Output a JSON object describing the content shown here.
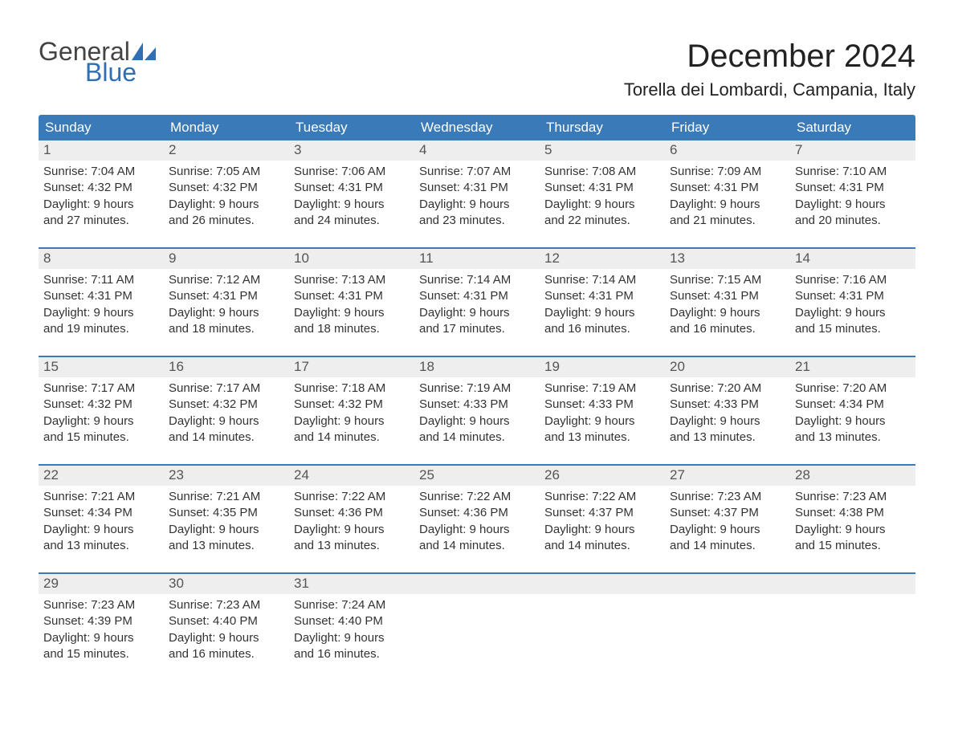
{
  "logo": {
    "word1": "General",
    "word2": "Blue"
  },
  "title": "December 2024",
  "location": "Torella dei Lombardi, Campania, Italy",
  "colors": {
    "header_bg": "#3a7ab8",
    "header_text": "#ffffff",
    "daynum_bg": "#eeeeee",
    "daynum_text": "#555555",
    "body_text": "#333333",
    "row_border": "#3a7ab8",
    "logo_gray": "#444444",
    "logo_blue": "#2f6fb3",
    "page_bg": "#ffffff"
  },
  "typography": {
    "title_fontsize": 40,
    "location_fontsize": 22,
    "dow_fontsize": 17,
    "daynum_fontsize": 17,
    "body_fontsize": 15,
    "logo_fontsize": 32
  },
  "daysOfWeek": [
    "Sunday",
    "Monday",
    "Tuesday",
    "Wednesday",
    "Thursday",
    "Friday",
    "Saturday"
  ],
  "weeks": [
    [
      {
        "n": "1",
        "sunrise": "Sunrise: 7:04 AM",
        "sunset": "Sunset: 4:32 PM",
        "d1": "Daylight: 9 hours",
        "d2": "and 27 minutes."
      },
      {
        "n": "2",
        "sunrise": "Sunrise: 7:05 AM",
        "sunset": "Sunset: 4:32 PM",
        "d1": "Daylight: 9 hours",
        "d2": "and 26 minutes."
      },
      {
        "n": "3",
        "sunrise": "Sunrise: 7:06 AM",
        "sunset": "Sunset: 4:31 PM",
        "d1": "Daylight: 9 hours",
        "d2": "and 24 minutes."
      },
      {
        "n": "4",
        "sunrise": "Sunrise: 7:07 AM",
        "sunset": "Sunset: 4:31 PM",
        "d1": "Daylight: 9 hours",
        "d2": "and 23 minutes."
      },
      {
        "n": "5",
        "sunrise": "Sunrise: 7:08 AM",
        "sunset": "Sunset: 4:31 PM",
        "d1": "Daylight: 9 hours",
        "d2": "and 22 minutes."
      },
      {
        "n": "6",
        "sunrise": "Sunrise: 7:09 AM",
        "sunset": "Sunset: 4:31 PM",
        "d1": "Daylight: 9 hours",
        "d2": "and 21 minutes."
      },
      {
        "n": "7",
        "sunrise": "Sunrise: 7:10 AM",
        "sunset": "Sunset: 4:31 PM",
        "d1": "Daylight: 9 hours",
        "d2": "and 20 minutes."
      }
    ],
    [
      {
        "n": "8",
        "sunrise": "Sunrise: 7:11 AM",
        "sunset": "Sunset: 4:31 PM",
        "d1": "Daylight: 9 hours",
        "d2": "and 19 minutes."
      },
      {
        "n": "9",
        "sunrise": "Sunrise: 7:12 AM",
        "sunset": "Sunset: 4:31 PM",
        "d1": "Daylight: 9 hours",
        "d2": "and 18 minutes."
      },
      {
        "n": "10",
        "sunrise": "Sunrise: 7:13 AM",
        "sunset": "Sunset: 4:31 PM",
        "d1": "Daylight: 9 hours",
        "d2": "and 18 minutes."
      },
      {
        "n": "11",
        "sunrise": "Sunrise: 7:14 AM",
        "sunset": "Sunset: 4:31 PM",
        "d1": "Daylight: 9 hours",
        "d2": "and 17 minutes."
      },
      {
        "n": "12",
        "sunrise": "Sunrise: 7:14 AM",
        "sunset": "Sunset: 4:31 PM",
        "d1": "Daylight: 9 hours",
        "d2": "and 16 minutes."
      },
      {
        "n": "13",
        "sunrise": "Sunrise: 7:15 AM",
        "sunset": "Sunset: 4:31 PM",
        "d1": "Daylight: 9 hours",
        "d2": "and 16 minutes."
      },
      {
        "n": "14",
        "sunrise": "Sunrise: 7:16 AM",
        "sunset": "Sunset: 4:31 PM",
        "d1": "Daylight: 9 hours",
        "d2": "and 15 minutes."
      }
    ],
    [
      {
        "n": "15",
        "sunrise": "Sunrise: 7:17 AM",
        "sunset": "Sunset: 4:32 PM",
        "d1": "Daylight: 9 hours",
        "d2": "and 15 minutes."
      },
      {
        "n": "16",
        "sunrise": "Sunrise: 7:17 AM",
        "sunset": "Sunset: 4:32 PM",
        "d1": "Daylight: 9 hours",
        "d2": "and 14 minutes."
      },
      {
        "n": "17",
        "sunrise": "Sunrise: 7:18 AM",
        "sunset": "Sunset: 4:32 PM",
        "d1": "Daylight: 9 hours",
        "d2": "and 14 minutes."
      },
      {
        "n": "18",
        "sunrise": "Sunrise: 7:19 AM",
        "sunset": "Sunset: 4:33 PM",
        "d1": "Daylight: 9 hours",
        "d2": "and 14 minutes."
      },
      {
        "n": "19",
        "sunrise": "Sunrise: 7:19 AM",
        "sunset": "Sunset: 4:33 PM",
        "d1": "Daylight: 9 hours",
        "d2": "and 13 minutes."
      },
      {
        "n": "20",
        "sunrise": "Sunrise: 7:20 AM",
        "sunset": "Sunset: 4:33 PM",
        "d1": "Daylight: 9 hours",
        "d2": "and 13 minutes."
      },
      {
        "n": "21",
        "sunrise": "Sunrise: 7:20 AM",
        "sunset": "Sunset: 4:34 PM",
        "d1": "Daylight: 9 hours",
        "d2": "and 13 minutes."
      }
    ],
    [
      {
        "n": "22",
        "sunrise": "Sunrise: 7:21 AM",
        "sunset": "Sunset: 4:34 PM",
        "d1": "Daylight: 9 hours",
        "d2": "and 13 minutes."
      },
      {
        "n": "23",
        "sunrise": "Sunrise: 7:21 AM",
        "sunset": "Sunset: 4:35 PM",
        "d1": "Daylight: 9 hours",
        "d2": "and 13 minutes."
      },
      {
        "n": "24",
        "sunrise": "Sunrise: 7:22 AM",
        "sunset": "Sunset: 4:36 PM",
        "d1": "Daylight: 9 hours",
        "d2": "and 13 minutes."
      },
      {
        "n": "25",
        "sunrise": "Sunrise: 7:22 AM",
        "sunset": "Sunset: 4:36 PM",
        "d1": "Daylight: 9 hours",
        "d2": "and 14 minutes."
      },
      {
        "n": "26",
        "sunrise": "Sunrise: 7:22 AM",
        "sunset": "Sunset: 4:37 PM",
        "d1": "Daylight: 9 hours",
        "d2": "and 14 minutes."
      },
      {
        "n": "27",
        "sunrise": "Sunrise: 7:23 AM",
        "sunset": "Sunset: 4:37 PM",
        "d1": "Daylight: 9 hours",
        "d2": "and 14 minutes."
      },
      {
        "n": "28",
        "sunrise": "Sunrise: 7:23 AM",
        "sunset": "Sunset: 4:38 PM",
        "d1": "Daylight: 9 hours",
        "d2": "and 15 minutes."
      }
    ],
    [
      {
        "n": "29",
        "sunrise": "Sunrise: 7:23 AM",
        "sunset": "Sunset: 4:39 PM",
        "d1": "Daylight: 9 hours",
        "d2": "and 15 minutes."
      },
      {
        "n": "30",
        "sunrise": "Sunrise: 7:23 AM",
        "sunset": "Sunset: 4:40 PM",
        "d1": "Daylight: 9 hours",
        "d2": "and 16 minutes."
      },
      {
        "n": "31",
        "sunrise": "Sunrise: 7:24 AM",
        "sunset": "Sunset: 4:40 PM",
        "d1": "Daylight: 9 hours",
        "d2": "and 16 minutes."
      },
      {
        "n": "",
        "sunrise": "",
        "sunset": "",
        "d1": "",
        "d2": ""
      },
      {
        "n": "",
        "sunrise": "",
        "sunset": "",
        "d1": "",
        "d2": ""
      },
      {
        "n": "",
        "sunrise": "",
        "sunset": "",
        "d1": "",
        "d2": ""
      },
      {
        "n": "",
        "sunrise": "",
        "sunset": "",
        "d1": "",
        "d2": ""
      }
    ]
  ]
}
